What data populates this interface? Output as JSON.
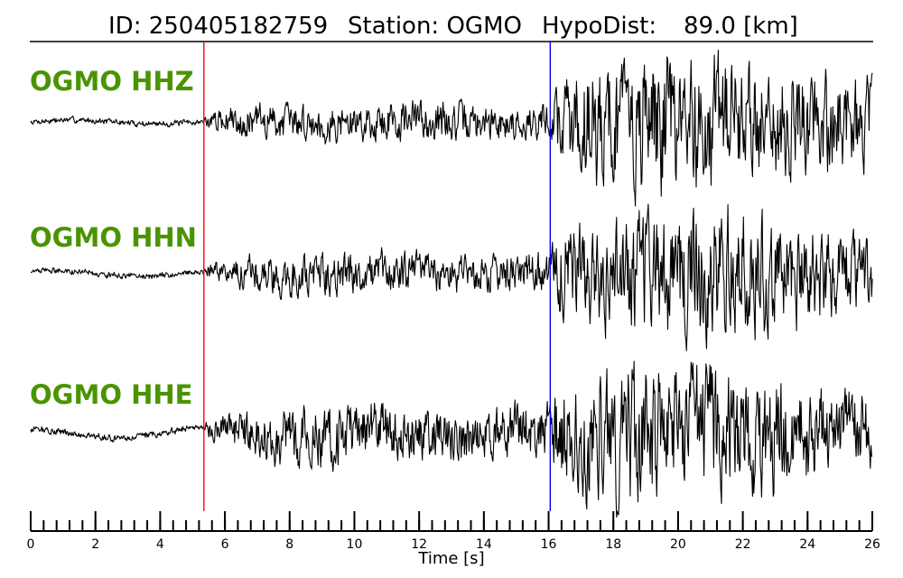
{
  "header": {
    "event_id_label": "ID: 250405182759",
    "station_label": "Station: OGMO",
    "hypodist_label": "HypoDist:",
    "hypodist_value": "89.0 [km]"
  },
  "chart_data": {
    "type": "line",
    "title": "ID: 250405182759   Station: OGMO   HypoDist:    89.0 [km]",
    "xlabel": "Time [s]",
    "ylabel": "",
    "xlim": [
      0,
      26
    ],
    "x_ticks": [
      0,
      2,
      4,
      6,
      8,
      10,
      12,
      14,
      16,
      18,
      20,
      22,
      24,
      26
    ],
    "x_tick_labels": [
      "0",
      "2",
      "4",
      "6",
      "8",
      "10",
      "12",
      "14",
      "16",
      "18",
      "20",
      "22",
      "24",
      "26"
    ],
    "minor_tick_step": 0.4,
    "grid": false,
    "label_color": "#4a9400",
    "trace_color": "#000000",
    "p_pick": {
      "time": 5.35,
      "color": "#ff0000"
    },
    "s_pick": {
      "time": 16.05,
      "color": "#0000ff"
    },
    "series": [
      {
        "name": "OGMO HHZ",
        "noise_amp": 0.025,
        "envelope_t": [
          0,
          5.35,
          5.5,
          7,
          10,
          12,
          15,
          16.05,
          16.3,
          17.5,
          19,
          21,
          23,
          26
        ],
        "envelope_a": [
          0.04,
          0.04,
          0.12,
          0.25,
          0.25,
          0.3,
          0.22,
          0.25,
          0.6,
          0.9,
          1.0,
          0.9,
          0.8,
          0.6
        ]
      },
      {
        "name": "OGMO HHN",
        "noise_amp": 0.04,
        "envelope_t": [
          0,
          5.35,
          5.5,
          7,
          10,
          12,
          15,
          16.05,
          16.3,
          17.5,
          19,
          21,
          23,
          26
        ],
        "envelope_a": [
          0.04,
          0.04,
          0.12,
          0.28,
          0.3,
          0.28,
          0.3,
          0.3,
          0.65,
          0.8,
          0.9,
          1.0,
          0.85,
          0.55
        ]
      },
      {
        "name": "OGMO HHE",
        "noise_amp": 0.06,
        "envelope_t": [
          0,
          5.35,
          5.5,
          7,
          9,
          12,
          15,
          16.05,
          16.3,
          17.5,
          19,
          21,
          23,
          26
        ],
        "envelope_a": [
          0.05,
          0.05,
          0.15,
          0.35,
          0.45,
          0.35,
          0.4,
          0.4,
          0.7,
          0.95,
          1.0,
          0.9,
          0.8,
          0.5
        ]
      }
    ]
  }
}
